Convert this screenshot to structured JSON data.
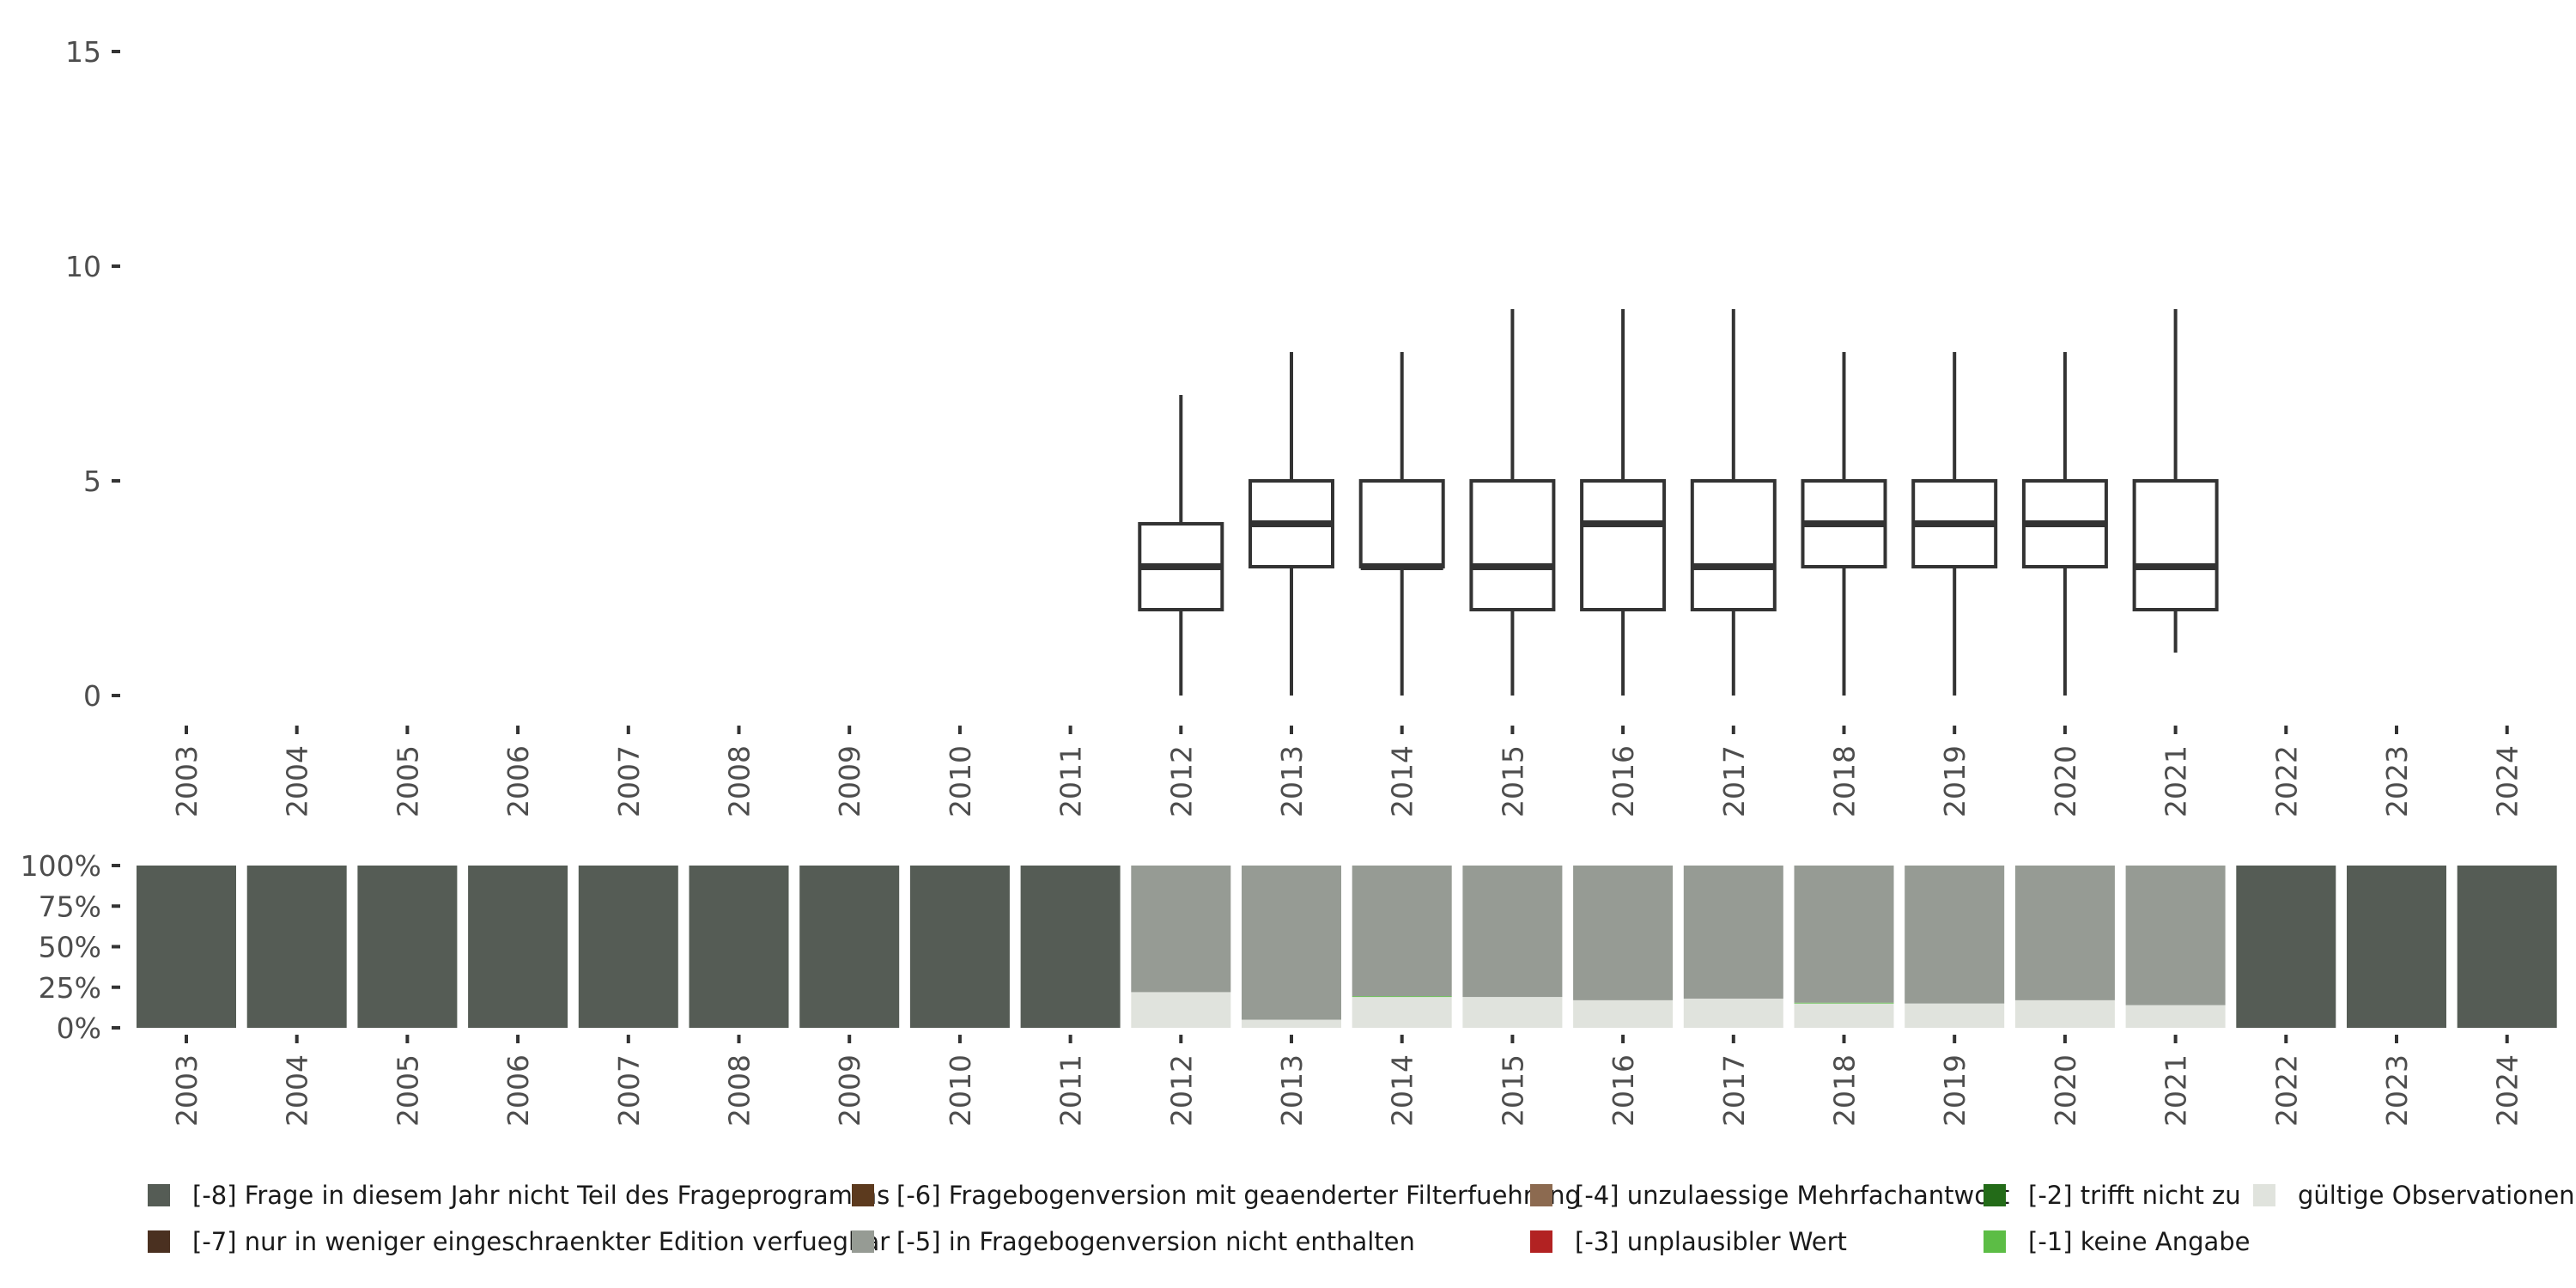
{
  "chart_data": [
    {
      "type": "boxplot",
      "title": "",
      "xlabel": "",
      "ylabel": "",
      "ylim": [
        0,
        15
      ],
      "y_ticks": [
        0,
        5,
        10,
        15
      ],
      "grid": false,
      "categories": [
        "2003",
        "2004",
        "2005",
        "2006",
        "2007",
        "2008",
        "2009",
        "2010",
        "2011",
        "2012",
        "2013",
        "2014",
        "2015",
        "2016",
        "2017",
        "2018",
        "2019",
        "2020",
        "2021",
        "2022",
        "2023",
        "2024"
      ],
      "boxes": [
        {
          "year": "2012",
          "whisker_low": 0,
          "q1": 2,
          "median": 3,
          "q3": 4,
          "whisker_high": 7
        },
        {
          "year": "2013",
          "whisker_low": 0,
          "q1": 3,
          "median": 4,
          "q3": 5,
          "whisker_high": 8
        },
        {
          "year": "2014",
          "whisker_low": 0,
          "q1": 3,
          "median": 3,
          "q3": 5,
          "whisker_high": 8
        },
        {
          "year": "2015",
          "whisker_low": 0,
          "q1": 2,
          "median": 3,
          "q3": 5,
          "whisker_high": 9
        },
        {
          "year": "2016",
          "whisker_low": 0,
          "q1": 2,
          "median": 4,
          "q3": 5,
          "whisker_high": 9
        },
        {
          "year": "2017",
          "whisker_low": 0,
          "q1": 2,
          "median": 3,
          "q3": 5,
          "whisker_high": 9
        },
        {
          "year": "2018",
          "whisker_low": 0,
          "q1": 3,
          "median": 4,
          "q3": 5,
          "whisker_high": 8
        },
        {
          "year": "2019",
          "whisker_low": 0,
          "q1": 3,
          "median": 4,
          "q3": 5,
          "whisker_high": 8
        },
        {
          "year": "2020",
          "whisker_low": 0,
          "q1": 3,
          "median": 4,
          "q3": 5,
          "whisker_high": 8
        },
        {
          "year": "2021",
          "whisker_low": 1,
          "q1": 2,
          "median": 3,
          "q3": 5,
          "whisker_high": 9
        }
      ]
    },
    {
      "type": "stacked_bar",
      "title": "",
      "xlabel": "",
      "ylabel": "",
      "ylim": [
        0,
        100
      ],
      "y_ticks": [
        "0%",
        "25%",
        "50%",
        "75%",
        "100%"
      ],
      "categories": [
        "2003",
        "2004",
        "2005",
        "2006",
        "2007",
        "2008",
        "2009",
        "2010",
        "2011",
        "2012",
        "2013",
        "2014",
        "2015",
        "2016",
        "2017",
        "2018",
        "2019",
        "2020",
        "2021",
        "2022",
        "2023",
        "2024"
      ],
      "series": [
        {
          "name": "gültige Observationen",
          "color": "#e0e3dd",
          "values": [
            0,
            0,
            0,
            0,
            0,
            0,
            0,
            0,
            0,
            22,
            5,
            19,
            19,
            17,
            18,
            15,
            15,
            17,
            14,
            0,
            0,
            0
          ]
        },
        {
          "name": "[-1] keine Angabe",
          "color": "#5cbd45",
          "values": [
            0,
            0,
            0,
            0,
            0,
            0,
            0,
            0,
            0,
            0,
            0,
            0.5,
            0,
            0,
            0,
            0.5,
            0,
            0,
            0,
            0,
            0,
            0
          ]
        },
        {
          "name": "[-5] in Fragebogenversion nicht enthalten",
          "color": "#969b94",
          "values": [
            0,
            0,
            0,
            0,
            0,
            0,
            0,
            0,
            0,
            78,
            95,
            80.5,
            81,
            83,
            82,
            84.5,
            85,
            83,
            86,
            0,
            0,
            0
          ]
        },
        {
          "name": "[-8] Frage in diesem Jahr nicht Teil des Frageprogramms",
          "color": "#555c55",
          "values": [
            100,
            100,
            100,
            100,
            100,
            100,
            100,
            100,
            100,
            0,
            0,
            0,
            0,
            0,
            0,
            0,
            0,
            0,
            0,
            100,
            100,
            100
          ]
        }
      ]
    }
  ],
  "legend": [
    {
      "label": "[-8] Frage in diesem Jahr nicht Teil des Frageprogramms",
      "color": "#555c55"
    },
    {
      "label": "[-7] nur in weniger eingeschraenkter Edition verfuegbar",
      "color": "#4a3020"
    },
    {
      "label": "[-6] Fragebogenversion mit geaenderter Filterfuehrung",
      "color": "#5c3a1e"
    },
    {
      "label": "[-5] in Fragebogenversion nicht enthalten",
      "color": "#969b94"
    },
    {
      "label": "[-4] unzulaessige Mehrfachantwort",
      "color": "#8c6a50"
    },
    {
      "label": "[-3] unplausibler Wert",
      "color": "#b22222"
    },
    {
      "label": "[-2] trifft nicht zu",
      "color": "#236b18"
    },
    {
      "label": "[-1] keine Angabe",
      "color": "#5cbd45"
    },
    {
      "label": "gültige Observationen",
      "color": "#e0e3dd"
    }
  ]
}
